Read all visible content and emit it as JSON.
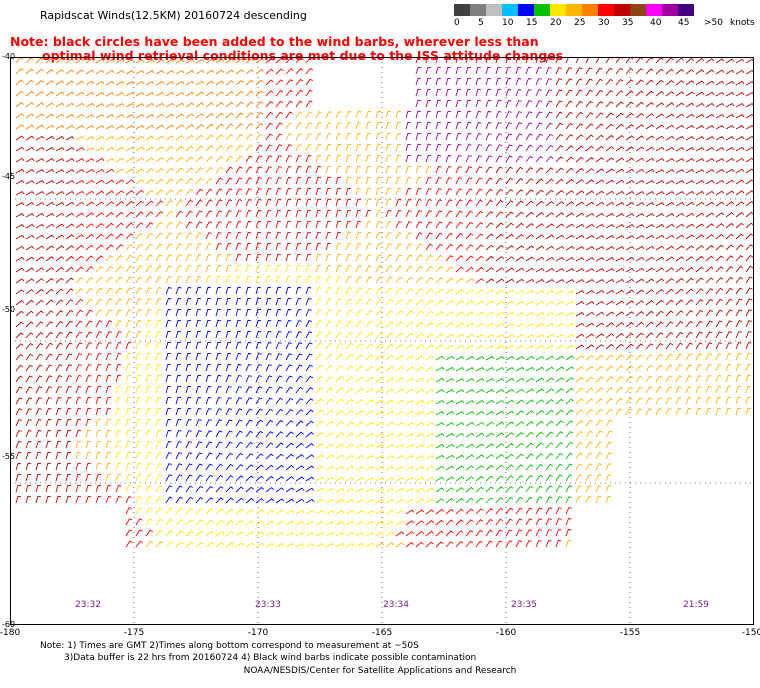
{
  "header": {
    "title": "Rapidscat Winds(12.5KM) 20160724 descending"
  },
  "legend": {
    "labels": [
      "0",
      "5",
      "10",
      "15",
      "20",
      "25",
      "30",
      "35",
      "40",
      "45",
      ">50",
      "knots"
    ],
    "colors": [
      "#404040",
      "#7f7f7f",
      "#bfbfbf",
      "#00bfff",
      "#0000ff",
      "#00c000",
      "#ffe600",
      "#ffb400",
      "#ff7f00",
      "#ff0000",
      "#c00000",
      "#8b4513",
      "#ff00ff",
      "#a000a0",
      "#400080"
    ]
  },
  "note": {
    "line1": "Note: black circles have been added to the wind barbs, wherever less than",
    "line2": "optimal wind retrieval conditions are met due to the ISS attitude changes"
  },
  "map": {
    "lon_ticks": [
      "-180",
      "-175",
      "-170",
      "-165",
      "-160",
      "-155",
      "-150"
    ],
    "lat_ticks": [
      "-40",
      "-45",
      "-50",
      "-55",
      "-60"
    ],
    "pass_times": [
      "23:32",
      "23:33",
      "23:34",
      "23:35",
      "21:59"
    ],
    "lon_range": [
      -180,
      -150
    ],
    "lat_range": [
      -60,
      -40
    ]
  },
  "footer": {
    "line1": "Note: 1) Times are GMT 2)Times along bottom correspond to measurement at ~50S",
    "line2": "3)Data buffer is 22 hrs from 20160724 4) Black wind barbs indicate possible contamination",
    "credit": "NOAA/NESDIS/Center for Satellite Applications and Research"
  }
}
